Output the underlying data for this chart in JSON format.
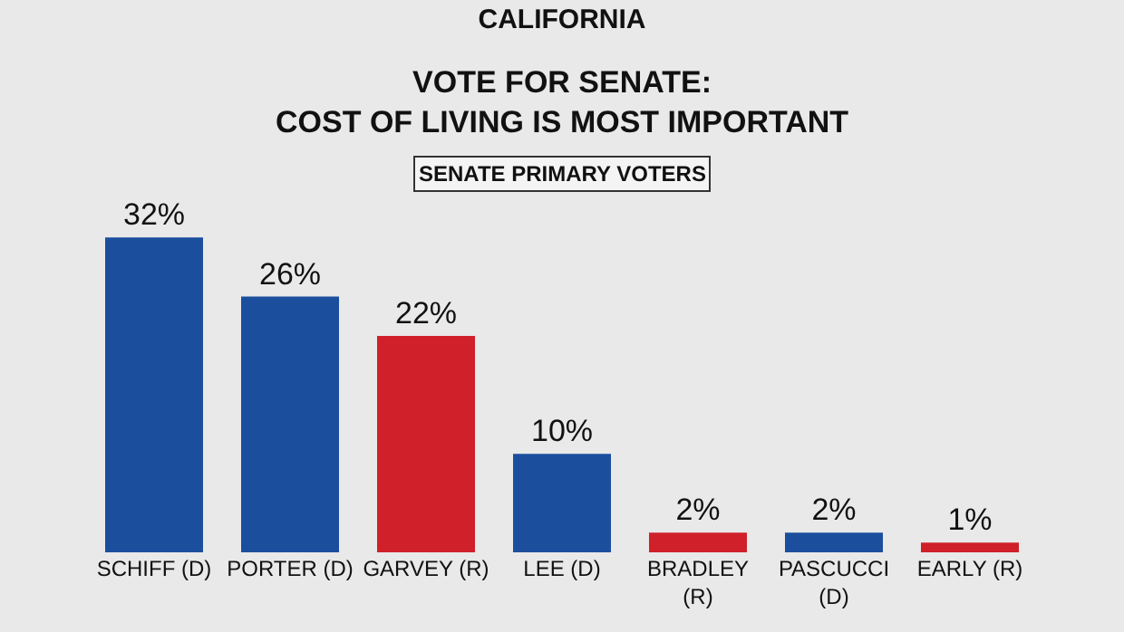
{
  "chart_data": {
    "type": "bar",
    "title": "CALIFORNIA",
    "subtitle": "VOTE FOR SENATE:\nCOST OF LIVING IS MOST IMPORTANT",
    "annotations": [
      "SENATE PRIMARY VOTERS"
    ],
    "categories": [
      "SCHIFF (D)",
      "PORTER (D)",
      "GARVEY (R)",
      "LEE (D)",
      "BRADLEY (R)",
      "PASCUCCI (D)",
      "EARLY (R)"
    ],
    "values": [
      32,
      26,
      22,
      10,
      2,
      2,
      1
    ],
    "colors": [
      "#1b4f9e",
      "#1b4f9e",
      "#d0202a",
      "#1b4f9e",
      "#d0202a",
      "#1b4f9e",
      "#d0202a"
    ],
    "value_labels": [
      "32%",
      "26%",
      "22%",
      "10%",
      "2%",
      "2%",
      "1%"
    ]
  }
}
